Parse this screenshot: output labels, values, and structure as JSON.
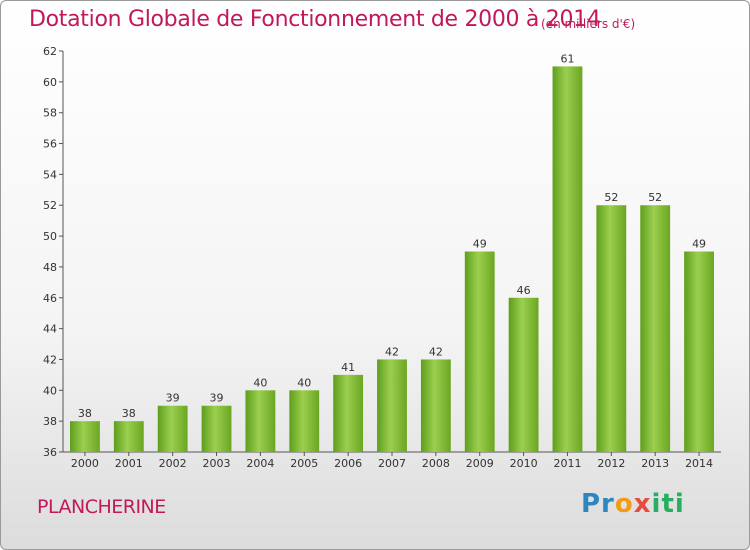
{
  "chart_data": {
    "type": "bar",
    "title": "Dotation Globale de Fonctionnement de 2000 à 2014",
    "subtitle": "(en milliers d'€)",
    "categories": [
      "2000",
      "2001",
      "2002",
      "2003",
      "2004",
      "2005",
      "2006",
      "2007",
      "2008",
      "2009",
      "2010",
      "2011",
      "2012",
      "2013",
      "2014"
    ],
    "values": [
      38,
      38,
      39,
      39,
      40,
      40,
      41,
      42,
      42,
      49,
      46,
      61,
      52,
      52,
      49
    ],
    "xlabel": "",
    "ylabel": "",
    "ylim": [
      36,
      62
    ],
    "yticks": [
      36,
      38,
      40,
      42,
      44,
      46,
      48,
      50,
      52,
      54,
      56,
      58,
      60,
      62
    ],
    "grid": false,
    "bar_color": "#7cbb2f"
  },
  "footer": {
    "town": "PLANCHERINE",
    "logo": "Proxiti"
  }
}
